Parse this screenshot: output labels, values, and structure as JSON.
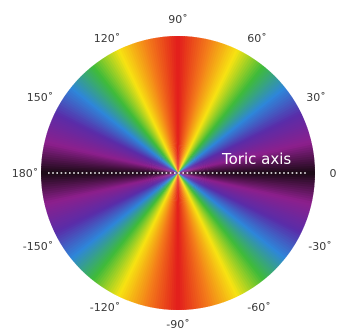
{
  "diagram": {
    "axis_label": "Toric axis",
    "angle_labels": {
      "a90": "90˚",
      "a60": "60˚",
      "a30": "30˚",
      "a0": "0",
      "an30": "-30˚",
      "an60": "-60˚",
      "an90": "-90˚",
      "an120": "-120˚",
      "an150": "-150˚",
      "a180": "180˚",
      "a150": "150˚",
      "a120": "120˚"
    },
    "colors": {
      "vertical_meridian": "#e21c1c",
      "horizontal_meridian": "#1a0a14",
      "spectrum": [
        "#e21c1c",
        "#f37a1a",
        "#f7e312",
        "#3fbb3a",
        "#2e86d9",
        "#5a2ca8",
        "#8c1f8c",
        "#1a0a14"
      ],
      "axis_line": "#ffffff"
    }
  }
}
